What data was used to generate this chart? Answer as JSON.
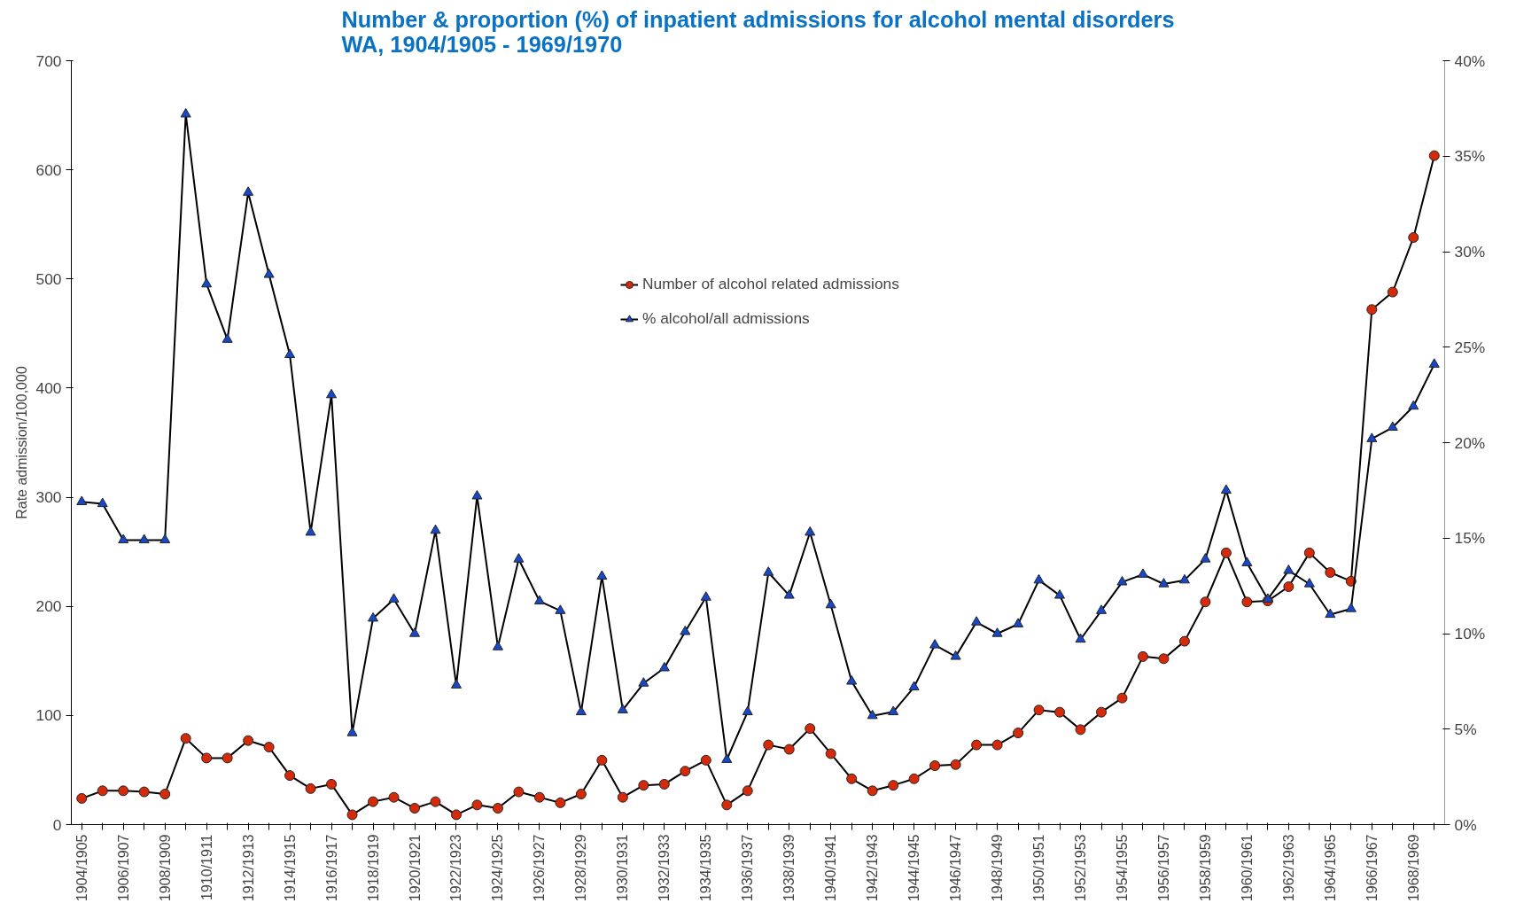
{
  "chart_data": {
    "type": "line",
    "title": "Number & proportion (%) of inpatient admissions for alcohol mental disorders\nWA, 1904/1905 - 1969/1970",
    "ylabel": "Rate admission/100,000",
    "categories": [
      "1904/1905",
      null,
      "1906/1907",
      null,
      "1908/1909",
      null,
      "1910/1911",
      null,
      "1912/1913",
      null,
      "1914/1915",
      null,
      "1916/1917",
      null,
      "1918/1919",
      null,
      "1920/1921",
      null,
      "1922/1923",
      null,
      "1924/1925",
      null,
      "1926/1927",
      null,
      "1928/1929",
      null,
      "1930/1931",
      null,
      "1932/1933",
      null,
      "1934/1935",
      null,
      "1936/1937",
      null,
      "1938/1939",
      null,
      "1940/1941",
      null,
      "1942/1943",
      null,
      "1944/1945",
      null,
      "1946/1947",
      null,
      "1948/1949",
      null,
      "1950/1951",
      null,
      "1952/1953",
      null,
      "1954/1955",
      null,
      "1956/1957",
      null,
      "1958/1959",
      null,
      "1960/1961",
      null,
      "1962/1963",
      null,
      "1964/1965",
      null,
      "1966/1967",
      null,
      "1968/1969",
      null
    ],
    "series": [
      {
        "name": "Number of alcohol related admissions",
        "color": "#d42a0a",
        "marker": "circle",
        "values": [
          24,
          31,
          31,
          30,
          28,
          79,
          61,
          61,
          77,
          71,
          45,
          33,
          37,
          9,
          21,
          25,
          15,
          21,
          9,
          18,
          15,
          30,
          25,
          20,
          28,
          59,
          25,
          36,
          37,
          49,
          59,
          18,
          31,
          73,
          69,
          88,
          65,
          42,
          31,
          36,
          42,
          54,
          55,
          73,
          73,
          84,
          105,
          103,
          87,
          103,
          116,
          154,
          152,
          168,
          204,
          249,
          204,
          205,
          218,
          249,
          231,
          223,
          472,
          488,
          538,
          613
        ]
      },
      {
        "name": "% alcohol/all admissions",
        "color": "#1748c8",
        "marker": "triangle",
        "axis": "y2",
        "values": [
          16.9,
          16.8,
          14.9,
          14.9,
          14.9,
          37.2,
          28.3,
          25.4,
          33.1,
          28.8,
          24.6,
          15.3,
          22.5,
          4.8,
          10.8,
          11.8,
          10.0,
          15.4,
          7.3,
          17.2,
          9.3,
          13.9,
          11.7,
          11.2,
          5.9,
          13.0,
          6.0,
          7.4,
          8.2,
          10.1,
          11.9,
          3.4,
          5.9,
          13.2,
          12.0,
          15.3,
          11.5,
          7.5,
          5.7,
          5.9,
          7.2,
          9.4,
          8.8,
          10.6,
          10.0,
          10.5,
          12.8,
          12.0,
          9.7,
          11.2,
          12.7,
          13.1,
          12.6,
          12.8,
          13.9,
          17.5,
          13.7,
          11.8,
          13.3,
          12.6,
          11.0,
          11.3,
          20.2,
          20.8,
          21.9,
          24.1
        ]
      }
    ],
    "ylim": [
      0,
      700
    ],
    "yticks": [
      0,
      100,
      200,
      300,
      400,
      500,
      600,
      700
    ],
    "y2lim": [
      0,
      40
    ],
    "y2ticks": [
      {
        "value": 0,
        "label": "0%"
      },
      {
        "value": 5,
        "label": "5%"
      },
      {
        "value": 10,
        "label": "10%"
      },
      {
        "value": 15,
        "label": "15%"
      },
      {
        "value": 20,
        "label": "20%"
      },
      {
        "value": 25,
        "label": "25%"
      },
      {
        "value": 30,
        "label": "30%"
      },
      {
        "value": 35,
        "label": "35%"
      },
      {
        "value": 40,
        "label": "40%"
      }
    ],
    "legend": "top",
    "grid": false
  }
}
